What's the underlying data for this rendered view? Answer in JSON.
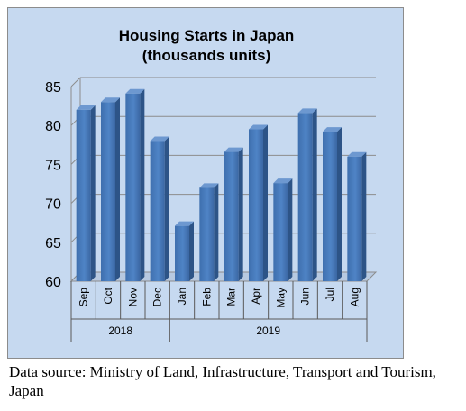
{
  "chart_data": {
    "type": "bar",
    "title_lines": [
      "Housing Starts in Japan",
      "(thousands units)"
    ],
    "categories": [
      "Sep",
      "Oct",
      "Nov",
      "Dec",
      "Jan",
      "Feb",
      "Mar",
      "Apr",
      "May",
      "Jun",
      "Jul",
      "Aug"
    ],
    "values": [
      82.0,
      83.0,
      84.1,
      78.0,
      67.1,
      72.0,
      76.6,
      79.5,
      72.6,
      81.6,
      79.2,
      76.0
    ],
    "year_groups": [
      {
        "label": "2018",
        "count": 4
      },
      {
        "label": "2019",
        "count": 8
      }
    ],
    "ylim": [
      60,
      85
    ],
    "yticks": [
      60,
      65,
      70,
      75,
      80,
      85
    ],
    "grid": true,
    "legend": "none",
    "bar_color": "#4a7ebb"
  },
  "source_note": "Data source: Ministry of Land, Infrastructure, Transport and Tourism, Japan"
}
